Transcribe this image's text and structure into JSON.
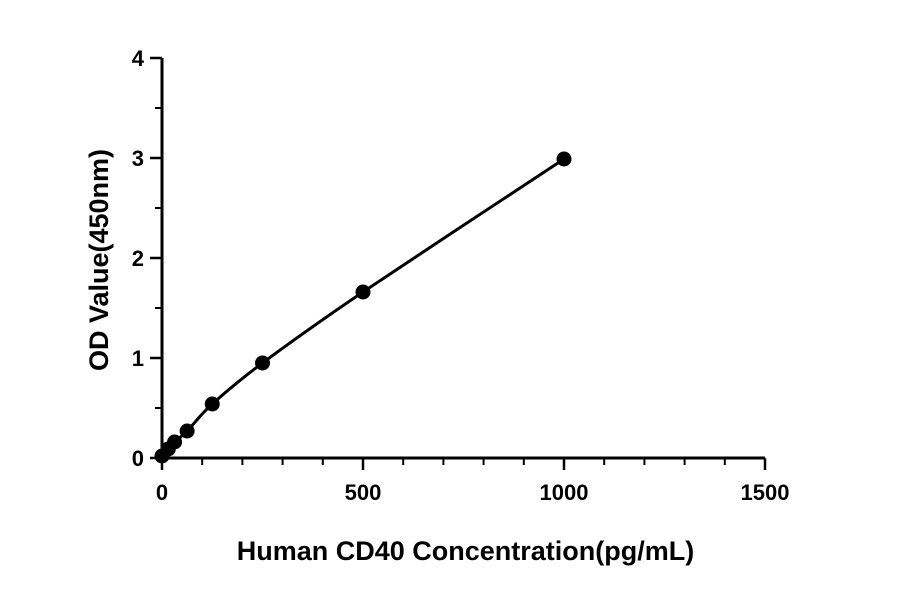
{
  "chart_data": {
    "type": "scatter",
    "title": "",
    "xlabel": "Human CD40 Concentration(pg/mL)",
    "ylabel": "OD Value(450nm)",
    "xlim": [
      0,
      1500
    ],
    "ylim": [
      0,
      4
    ],
    "x_ticks": [
      0,
      500,
      1000,
      1500
    ],
    "y_ticks": [
      0,
      1,
      2,
      3,
      4
    ],
    "x_tick_labels": [
      "0",
      "500",
      "1000",
      "1500"
    ],
    "y_tick_labels": [
      "0",
      "1",
      "2",
      "3",
      "4"
    ],
    "grid": false,
    "legend": "none",
    "fit_line": true,
    "series": [
      {
        "x": [
          0,
          15.6,
          31.25,
          62.5,
          125,
          250,
          500,
          1000
        ],
        "y": [
          0.02,
          0.09,
          0.16,
          0.27,
          0.54,
          0.95,
          1.66,
          2.99
        ]
      }
    ]
  }
}
